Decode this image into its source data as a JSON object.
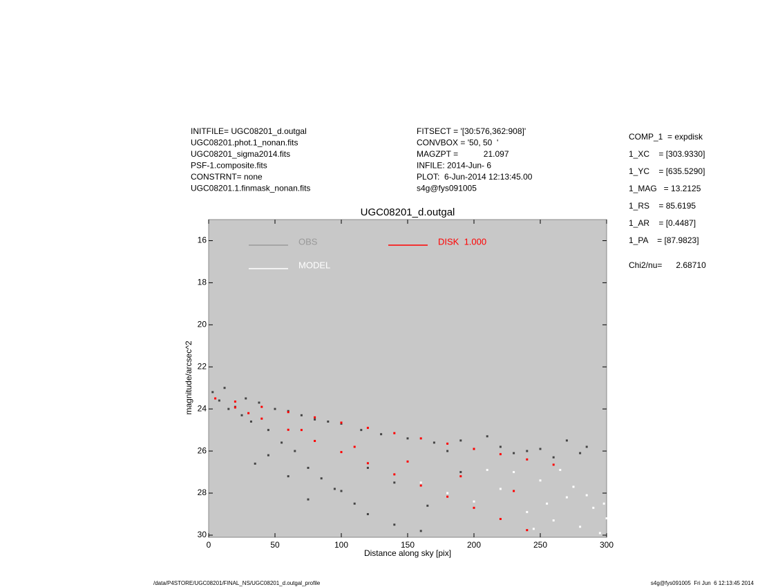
{
  "info": {
    "left": [
      "INITFILE= UGC08201_d.outgal",
      "UGC08201.phot.1_nonan.fits",
      "UGC08201_sigma2014.fits",
      "PSF-1.composite.fits",
      "CONSTRNT= none",
      "UGC08201.1.finmask_nonan.fits"
    ],
    "middle": [
      "FITSECT = '[30:576,362:908]'",
      "CONVBOX = '50, 50  '",
      "MAGZPT =           21.097",
      "INFILE: 2014-Jun- 6",
      "PLOT:  6-Jun-2014 12:13:45.00",
      "s4g@fys091005"
    ],
    "params": [
      "COMP_1  = expdisk",
      "1_XC    = [303.9330]",
      "1_YC    = [635.5290]",
      "1_MAG   = 13.2125",
      "1_RS    = 85.6195",
      "1_AR    = [0.4487]",
      "1_PA    = [87.9823]"
    ],
    "chi2": "Chi2/nu=      2.68710",
    "footer_left": "/data/P4STORE/UGC08201/FINAL_NS/UGC08201_d.outgal_profile",
    "footer_right": "s4g@fys091005  Fri Jun  6 12:13:45 2014"
  },
  "chart_data": {
    "type": "scatter",
    "title": "UGC08201_d.outgal",
    "x_label": "Distance along sky [pix]",
    "y_label": "magnitude/arcsec^2",
    "xlim": [
      0,
      300
    ],
    "ylim": [
      30.1,
      15
    ],
    "xticks": [
      0,
      50,
      100,
      150,
      200,
      250,
      300
    ],
    "yticks": [
      16,
      18,
      20,
      22,
      24,
      26,
      28,
      30
    ],
    "background": "#c8c8c8",
    "series": [
      {
        "name": "OBS",
        "color": "#444444",
        "legend_color": "#999999",
        "x": [
          3,
          8,
          12,
          15,
          20,
          25,
          28,
          32,
          38,
          45,
          50,
          55,
          60,
          65,
          70,
          75,
          80,
          85,
          90,
          95,
          100,
          110,
          115,
          120,
          130,
          140,
          150,
          160,
          170,
          180,
          190,
          200,
          210,
          220,
          230,
          240,
          250,
          260,
          270,
          280,
          285,
          60,
          75,
          100,
          120,
          45,
          35,
          140,
          165,
          190
        ],
        "values": [
          23.2,
          23.6,
          23.0,
          24.0,
          23.9,
          24.3,
          23.5,
          24.6,
          23.7,
          25.0,
          24.0,
          25.6,
          24.1,
          26.0,
          24.3,
          26.8,
          24.5,
          27.3,
          24.6,
          27.8,
          24.7,
          28.5,
          25.0,
          29.0,
          25.2,
          29.5,
          25.4,
          29.8,
          25.6,
          26.0,
          25.5,
          25.9,
          25.3,
          25.8,
          26.1,
          26.0,
          25.9,
          26.3,
          25.5,
          26.1,
          25.8,
          27.2,
          28.3,
          27.9,
          26.8,
          26.2,
          26.6,
          27.5,
          28.6,
          27.0
        ]
      },
      {
        "name": "MODEL",
        "color": "#ffffff",
        "legend_color": "#ffffff",
        "x": [
          160,
          180,
          200,
          220,
          240,
          250,
          260,
          270,
          280,
          290,
          300,
          230,
          255,
          275,
          295,
          210,
          245,
          265,
          285,
          298
        ],
        "values": [
          27.5,
          28.0,
          28.4,
          27.8,
          28.9,
          27.4,
          29.3,
          28.2,
          29.6,
          28.7,
          29.2,
          27.0,
          28.5,
          27.7,
          29.9,
          26.9,
          29.7,
          26.9,
          28.1,
          28.5
        ]
      },
      {
        "name": "DISK  1.000",
        "color": "#ff0000",
        "legend_color": "#ff0000",
        "x": [
          5,
          20,
          20,
          40,
          40,
          60,
          60,
          80,
          80,
          100,
          100,
          120,
          120,
          140,
          140,
          160,
          160,
          180,
          180,
          200,
          200,
          220,
          220,
          240,
          240,
          260,
          30,
          70,
          110,
          150,
          190,
          230
        ],
        "values": [
          23.5,
          23.65,
          23.93,
          23.9,
          24.46,
          24.15,
          24.99,
          24.4,
          25.52,
          24.65,
          26.05,
          24.9,
          26.58,
          25.15,
          27.11,
          25.4,
          27.64,
          25.65,
          28.17,
          25.9,
          28.7,
          26.15,
          29.23,
          26.4,
          29.76,
          26.65,
          24.2,
          25.0,
          25.8,
          26.5,
          27.2,
          27.9
        ]
      }
    ]
  }
}
